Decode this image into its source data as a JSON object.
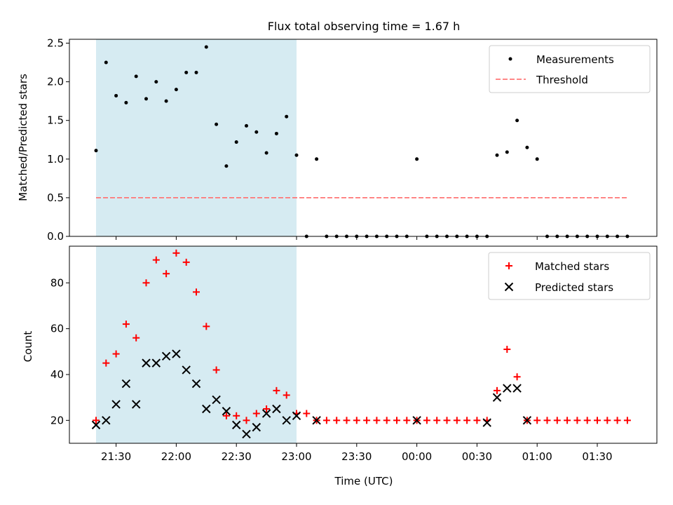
{
  "title": "Flux total observing time = 1.67 h",
  "colors": {
    "measurement": "#000000",
    "threshold": "#ff7777",
    "matched": "#ff0000",
    "predicted": "#000000",
    "observing_band": "#add8e6"
  },
  "x_axis": {
    "label": "Time (UTC)",
    "ticks": [
      "21:30",
      "22:00",
      "22:30",
      "23:00",
      "23:30",
      "00:00",
      "00:30",
      "01:00",
      "01:30"
    ]
  },
  "chart_data": [
    {
      "type": "scatter",
      "ylabel": "Matched/Predicted stars",
      "ylim": [
        0,
        2.55
      ],
      "yticks": [
        "0.0",
        "0.5",
        "1.0",
        "1.5",
        "2.0",
        "2.5"
      ],
      "legend": {
        "placement": "top-right",
        "entries": [
          "Measurements",
          "Threshold"
        ]
      },
      "observing_band": {
        "start": "21:20",
        "end": "23:00"
      },
      "threshold": {
        "value": 0.5,
        "start": "21:20",
        "end": "01:45"
      },
      "series": [
        {
          "name": "Measurements",
          "x": [
            "21:20",
            "21:25",
            "21:30",
            "21:35",
            "21:40",
            "21:45",
            "21:50",
            "21:55",
            "22:00",
            "22:05",
            "22:10",
            "22:15",
            "22:20",
            "22:25",
            "22:30",
            "22:35",
            "22:40",
            "22:45",
            "22:50",
            "22:55",
            "23:00",
            "23:05",
            "23:10",
            "23:15",
            "23:20",
            "23:25",
            "23:30",
            "23:35",
            "23:40",
            "23:45",
            "23:50",
            "23:55",
            "00:00",
            "00:05",
            "00:10",
            "00:15",
            "00:20",
            "00:25",
            "00:30",
            "00:35",
            "00:40",
            "00:45",
            "00:50",
            "00:55",
            "01:00",
            "01:05",
            "01:10",
            "01:15",
            "01:20",
            "01:25",
            "01:30",
            "01:35",
            "01:40",
            "01:45"
          ],
          "y": [
            1.11,
            2.25,
            1.82,
            1.73,
            2.07,
            1.78,
            2.0,
            1.75,
            1.9,
            2.12,
            2.12,
            2.45,
            1.45,
            0.91,
            1.22,
            1.43,
            1.35,
            1.08,
            1.33,
            1.55,
            1.05,
            0,
            1.0,
            0,
            0,
            0,
            0,
            0,
            0,
            0,
            0,
            0,
            1.0,
            0,
            0,
            0,
            0,
            0,
            0,
            0,
            1.05,
            1.09,
            1.5,
            1.15,
            1.0,
            0,
            0,
            0,
            0,
            0,
            0,
            0,
            0,
            0
          ]
        }
      ]
    },
    {
      "type": "scatter",
      "ylabel": "Count",
      "ylim": [
        10,
        96
      ],
      "yticks": [
        "20",
        "40",
        "60",
        "80"
      ],
      "legend": {
        "placement": "top-right",
        "entries": [
          "Matched stars",
          "Predicted stars"
        ]
      },
      "observing_band": {
        "start": "21:20",
        "end": "23:00"
      },
      "x": [
        "21:20",
        "21:25",
        "21:30",
        "21:35",
        "21:40",
        "21:45",
        "21:50",
        "21:55",
        "22:00",
        "22:05",
        "22:10",
        "22:15",
        "22:20",
        "22:25",
        "22:30",
        "22:35",
        "22:40",
        "22:45",
        "22:50",
        "22:55",
        "23:00",
        "23:05",
        "23:10",
        "23:15",
        "23:20",
        "23:25",
        "23:30",
        "23:35",
        "23:40",
        "23:45",
        "23:50",
        "23:55",
        "00:00",
        "00:05",
        "00:10",
        "00:15",
        "00:20",
        "00:25",
        "00:30",
        "00:35",
        "00:40",
        "00:45",
        "00:50",
        "00:55",
        "01:00",
        "01:05",
        "01:10",
        "01:15",
        "01:20",
        "01:25",
        "01:30",
        "01:35",
        "01:40",
        "01:45"
      ],
      "series": [
        {
          "name": "Matched stars",
          "marker": "plus",
          "values": [
            20,
            45,
            49,
            62,
            56,
            80,
            90,
            84,
            93,
            89,
            76,
            61,
            42,
            22,
            22,
            20,
            23,
            25,
            33,
            31,
            23,
            23,
            20,
            20,
            20,
            20,
            20,
            20,
            20,
            20,
            20,
            20,
            20,
            20,
            20,
            20,
            20,
            20,
            20,
            20,
            33,
            51,
            39,
            20,
            20,
            20,
            20,
            20,
            20,
            20,
            20,
            20,
            20,
            20
          ]
        },
        {
          "name": "Predicted stars",
          "marker": "x",
          "values": [
            18,
            20,
            27,
            36,
            27,
            45,
            45,
            48,
            49,
            42,
            36,
            25,
            29,
            24,
            18,
            14,
            17,
            23,
            25,
            20,
            22,
            null,
            20,
            null,
            null,
            null,
            null,
            null,
            null,
            null,
            null,
            null,
            20,
            null,
            null,
            null,
            null,
            null,
            null,
            19,
            30,
            34,
            34,
            20,
            null,
            null,
            null,
            null,
            null,
            null,
            null,
            null,
            null,
            null
          ]
        }
      ]
    }
  ]
}
